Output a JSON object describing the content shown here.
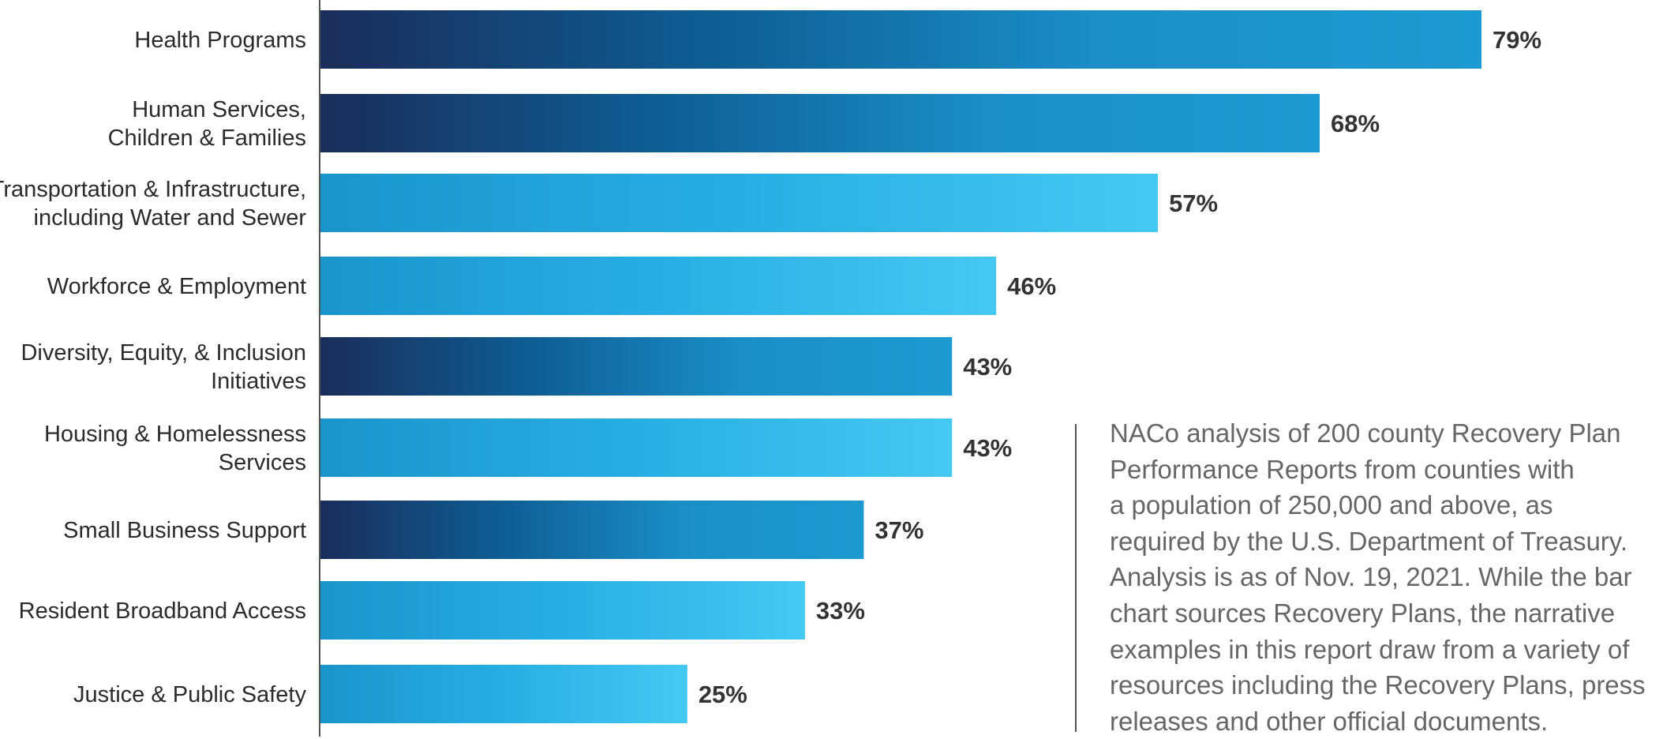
{
  "chart_data": {
    "type": "bar",
    "orientation": "horizontal",
    "categories": [
      [
        "Health Programs"
      ],
      [
        "Human Services,",
        "Children & Families"
      ],
      [
        "Transportation & Infrastructure,",
        "including Water and Sewer"
      ],
      [
        "Workforce & Employment"
      ],
      [
        "Diversity, Equity, & Inclusion",
        "Initiatives"
      ],
      [
        "Housing & Homelessness",
        "Services"
      ],
      [
        "Small Business Support"
      ],
      [
        "Resident Broadband Access"
      ],
      [
        "Justice & Public Safety"
      ]
    ],
    "values": [
      79,
      68,
      57,
      46,
      43,
      43,
      37,
      33,
      25
    ],
    "value_labels": [
      "79%",
      "68%",
      "57%",
      "46%",
      "43%",
      "43%",
      "37%",
      "33%",
      "25%"
    ],
    "bar_styles": [
      "dark",
      "dark",
      "light",
      "light",
      "dark",
      "light",
      "dark",
      "light",
      "light"
    ],
    "xlim": [
      0,
      100
    ],
    "grid": false,
    "legend": "none"
  },
  "colors": {
    "dark_gradient": [
      "#1b2d5a",
      "#0e5d93",
      "#1b8ec7",
      "#1d9ad1"
    ],
    "light_gradient": [
      "#1a95cc",
      "#28aee3",
      "#45c8f2"
    ],
    "axis": "#555555",
    "value_text": "#333333",
    "label_text": "#2b2b2b",
    "note_text": "#666666"
  },
  "note": {
    "text": "NACo analysis of 200 county Recovery Plan\nPerformance Reports from counties with\na population of 250,000 and above, as\nrequired by the U.S. Department of Treasury.\nAnalysis is as of Nov. 19, 2021. While the bar\nchart sources Recovery Plans, the narrative\nexamples in this report draw from a variety of\nresources including the Recovery Plans, press\nreleases and other official documents."
  }
}
